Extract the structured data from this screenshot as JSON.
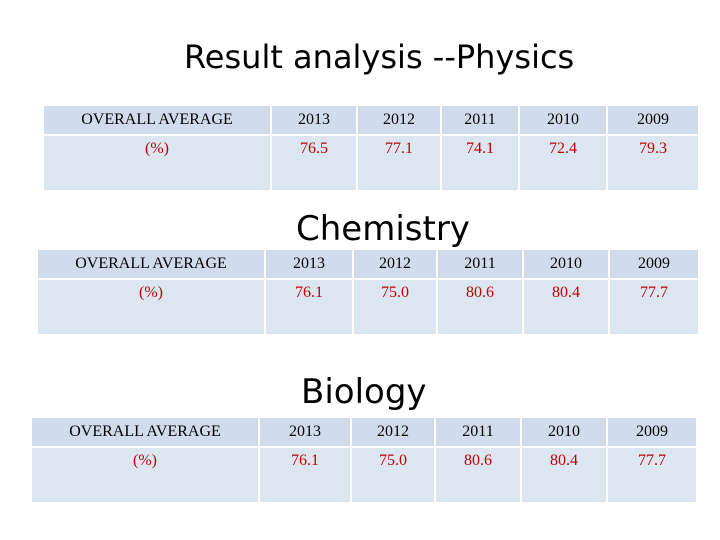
{
  "sections": [
    {
      "title": "Result analysis --Physics",
      "header_label": "OVERALL AVERAGE",
      "row_label": "(%)",
      "years": [
        "2013",
        "2012",
        "2011",
        "2010",
        "2009"
      ],
      "values": [
        "76.5",
        "77.1",
        "74.1",
        "72.4",
        "79.3"
      ]
    },
    {
      "title": "Chemistry",
      "header_label": "OVERALL AVERAGE",
      "row_label": "(%)",
      "years": [
        "2013",
        "2012",
        "2011",
        "2010",
        "2009"
      ],
      "values": [
        "76.1",
        "75.0",
        "80.6",
        "80.4",
        "77.7"
      ]
    },
    {
      "title": "Biology",
      "header_label": "OVERALL AVERAGE",
      "row_label": "(%)",
      "years": [
        "2013",
        "2012",
        "2011",
        "2010",
        "2009"
      ],
      "values": [
        "76.1",
        "75.0",
        "80.6",
        "80.4",
        "77.7"
      ]
    }
  ]
}
